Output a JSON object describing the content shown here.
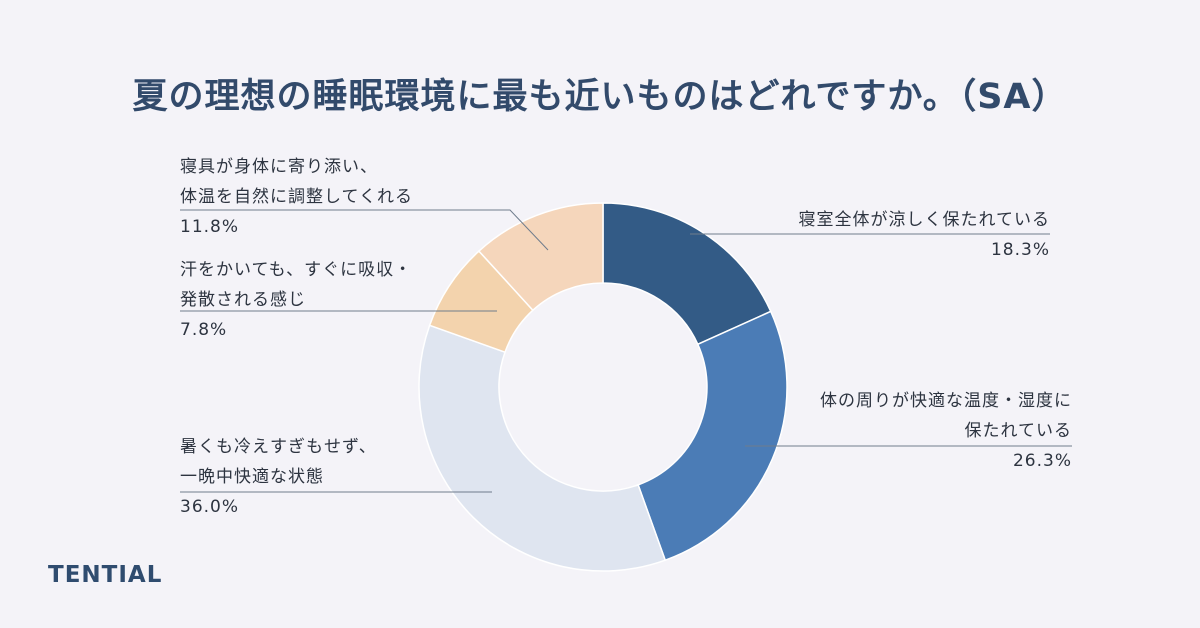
{
  "title": "夏の理想の睡眠環境に最も近いものはどれですか。（SA）",
  "brand": "TENTIAL",
  "colors": {
    "background": "#f4f3f8",
    "title": "#324a6b",
    "slices": [
      "#335b86",
      "#4b7cb6",
      "#dfe5f0",
      "#f3d3ad",
      "#f5d6bb"
    ]
  },
  "chart_data": {
    "type": "pie",
    "style": "donut",
    "start": "12 o'clock, clockwise",
    "slices": [
      {
        "lines": [
          "寝室全体が涼しく保たれている"
        ],
        "value": 18.3,
        "pct": "18.3%"
      },
      {
        "lines": [
          "体の周りが快適な温度・湿度に",
          "保たれている"
        ],
        "value": 26.3,
        "pct": "26.3%"
      },
      {
        "lines": [
          "暑くも冷えすぎもせず、",
          "一晩中快適な状態"
        ],
        "value": 36.0,
        "pct": "36.0%"
      },
      {
        "lines": [
          "汗をかいても、すぐに吸収・",
          "発散される感じ"
        ],
        "value": 7.8,
        "pct": "7.8%"
      },
      {
        "lines": [
          "寝具が身体に寄り添い、",
          "体温を自然に調整してくれる"
        ],
        "value": 11.8,
        "pct": "11.8%"
      }
    ]
  }
}
